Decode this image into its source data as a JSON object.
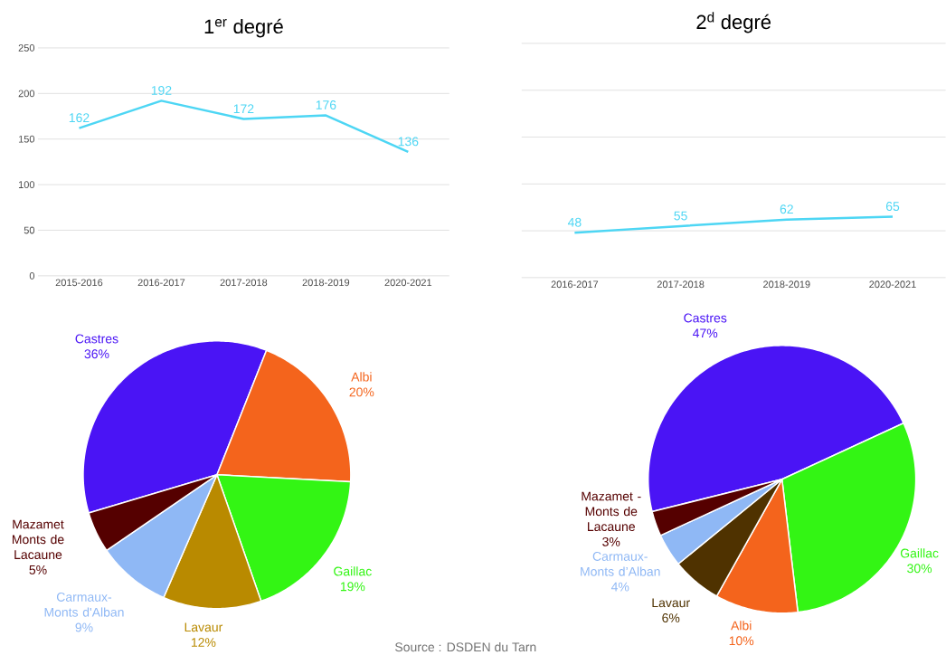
{
  "chart_data": [
    {
      "type": "line",
      "title": "1$^{er}$ degré",
      "categories": [
        "2015-2016",
        "2016-2017",
        "2017-2018",
        "2018-2019",
        "2020-2021"
      ],
      "values": [
        162,
        192,
        172,
        176,
        136
      ],
      "color": "#4dd6f4",
      "ylim": [
        0,
        250
      ],
      "yticks": [
        0,
        50,
        100,
        150,
        200,
        250
      ],
      "grid": "y",
      "data_labels": true
    },
    {
      "type": "line",
      "title": "2$^{d}$ degré",
      "categories": [
        "2016-2017",
        "2017-2018",
        "2018-2019",
        "2020-2021"
      ],
      "values": [
        48,
        55,
        62,
        65
      ],
      "color": "#4dd6f4",
      "ylim": [
        0,
        250
      ],
      "yticks": [
        {
          "value": 0,
          "label": null
        },
        {
          "value": 50,
          "label": null
        },
        {
          "value": 100,
          "label": null
        },
        {
          "value": 150,
          "label": null
        },
        {
          "value": 200,
          "label": null
        },
        {
          "value": 250,
          "label": null
        }
      ],
      "tick_labels": "x",
      "grid": "y",
      "data_labels": true
    },
    {
      "type": "pie",
      "categories": [
        "Castres",
        "Albi",
        "Gaillac",
        "Lavaur",
        "Carmaux-Monts d'Alban",
        "Mazamet Monts de Lacaune"
      ],
      "values": [
        36,
        20,
        19,
        12,
        9,
        5
      ],
      "colors": [
        "#4a14f5",
        "#f4641c",
        "#33f514",
        "#b98a00",
        "#8fb8f5",
        "#550000"
      ],
      "value_labels": [
        "36%",
        "20%",
        "19%",
        "12%",
        "9%",
        "5%"
      ],
      "annotations": [
        "Source : DSDEN du Tarn"
      ]
    },
    {
      "type": "pie",
      "categories": [
        "Castres",
        "Gaillac",
        "Albi",
        "Lavaur",
        "Carmaux-Monts d’Alban",
        "Mazamet - Monts de Lacaune"
      ],
      "values": [
        47,
        30,
        10,
        6,
        4,
        3
      ],
      "colors": [
        "#4a14f5",
        "#33f514",
        "#f4641c",
        "#4f3200",
        "#8fb8f5",
        "#550000"
      ],
      "value_labels": [
        "47%",
        "30%",
        "10%",
        "6%",
        "4%",
        "3%"
      ]
    }
  ]
}
